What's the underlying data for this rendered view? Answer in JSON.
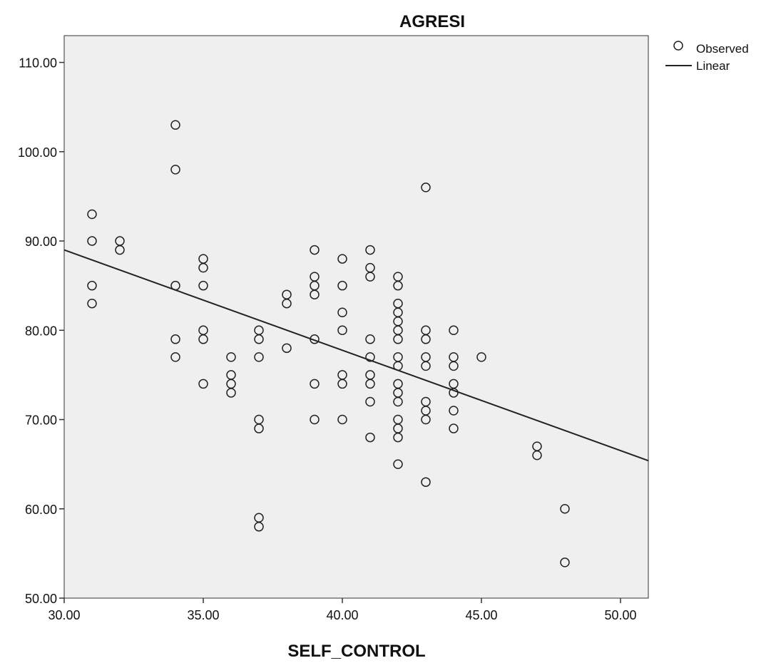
{
  "chart_data": {
    "type": "scatter",
    "title": "AGRESI",
    "xlabel": "SELF_CONTROL",
    "ylabel": "",
    "xlim": [
      30,
      51
    ],
    "ylim": [
      50,
      113
    ],
    "x_ticks": [
      "30.00",
      "35.00",
      "40.00",
      "45.00",
      "50.00"
    ],
    "y_ticks": [
      "50.00",
      "60.00",
      "70.00",
      "80.00",
      "90.00",
      "100.00",
      "110.00"
    ],
    "legend": {
      "placement": "right-outside-top",
      "observed_label": "Observed",
      "linear_label": "Linear"
    },
    "grid": false,
    "background": "#efefef",
    "marker_color": "#222222",
    "line_color": "#222222",
    "series": [
      {
        "name": "Observed",
        "kind": "points",
        "points": [
          [
            31,
            93
          ],
          [
            31,
            90
          ],
          [
            31,
            85
          ],
          [
            31,
            83
          ],
          [
            32,
            90
          ],
          [
            32,
            89
          ],
          [
            34,
            103
          ],
          [
            34,
            98
          ],
          [
            34,
            85
          ],
          [
            34,
            79
          ],
          [
            34,
            77
          ],
          [
            35,
            88
          ],
          [
            35,
            87
          ],
          [
            35,
            85
          ],
          [
            35,
            80
          ],
          [
            35,
            79
          ],
          [
            35,
            74
          ],
          [
            36,
            77
          ],
          [
            36,
            75
          ],
          [
            36,
            74
          ],
          [
            36,
            73
          ],
          [
            37,
            80
          ],
          [
            37,
            79
          ],
          [
            37,
            77
          ],
          [
            37,
            70
          ],
          [
            37,
            69
          ],
          [
            37,
            59
          ],
          [
            37,
            58
          ],
          [
            38,
            84
          ],
          [
            38,
            83
          ],
          [
            38,
            78
          ],
          [
            39,
            89
          ],
          [
            39,
            86
          ],
          [
            39,
            85
          ],
          [
            39,
            84
          ],
          [
            39,
            79
          ],
          [
            39,
            74
          ],
          [
            39,
            70
          ],
          [
            40,
            88
          ],
          [
            40,
            85
          ],
          [
            40,
            82
          ],
          [
            40,
            80
          ],
          [
            40,
            75
          ],
          [
            40,
            74
          ],
          [
            40,
            70
          ],
          [
            41,
            89
          ],
          [
            41,
            87
          ],
          [
            41,
            86
          ],
          [
            41,
            79
          ],
          [
            41,
            77
          ],
          [
            41,
            75
          ],
          [
            41,
            74
          ],
          [
            41,
            72
          ],
          [
            41,
            68
          ],
          [
            42,
            86
          ],
          [
            42,
            85
          ],
          [
            42,
            83
          ],
          [
            42,
            82
          ],
          [
            42,
            81
          ],
          [
            42,
            80
          ],
          [
            42,
            79
          ],
          [
            42,
            77
          ],
          [
            42,
            76
          ],
          [
            42,
            74
          ],
          [
            42,
            73
          ],
          [
            42,
            72
          ],
          [
            42,
            70
          ],
          [
            42,
            69
          ],
          [
            42,
            68
          ],
          [
            42,
            65
          ],
          [
            43,
            96
          ],
          [
            43,
            80
          ],
          [
            43,
            79
          ],
          [
            43,
            77
          ],
          [
            43,
            76
          ],
          [
            43,
            72
          ],
          [
            43,
            71
          ],
          [
            43,
            70
          ],
          [
            43,
            63
          ],
          [
            44,
            80
          ],
          [
            44,
            77
          ],
          [
            44,
            76
          ],
          [
            44,
            74
          ],
          [
            44,
            73
          ],
          [
            44,
            71
          ],
          [
            44,
            69
          ],
          [
            45,
            77
          ],
          [
            47,
            67
          ],
          [
            47,
            66
          ],
          [
            48,
            60
          ],
          [
            48,
            54
          ]
        ]
      },
      {
        "name": "Linear",
        "kind": "line",
        "points": [
          [
            30,
            89.0
          ],
          [
            51,
            65.4
          ]
        ]
      }
    ]
  }
}
